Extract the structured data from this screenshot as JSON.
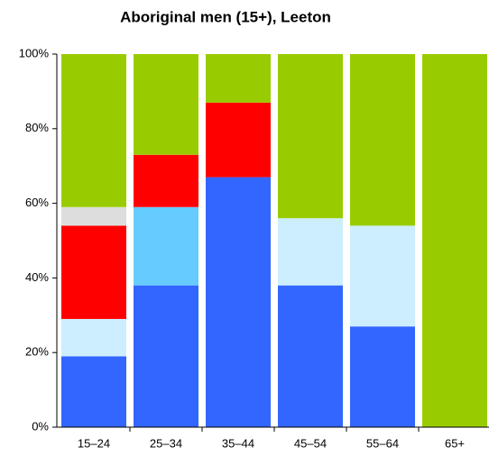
{
  "chart_data": {
    "type": "stacked_bar",
    "title": "Aboriginal men (15+), Leeton",
    "categories": [
      "15–24",
      "25–34",
      "35–44",
      "45–54",
      "55–64",
      "65+"
    ],
    "series": [
      {
        "color": "#3366ff",
        "values": [
          19,
          38,
          67,
          38,
          27,
          0
        ]
      },
      {
        "color": "#cceeff",
        "values": [
          10,
          0,
          0,
          18,
          27,
          0
        ]
      },
      {
        "color": "#66ccff",
        "values": [
          0,
          21,
          0,
          0,
          0,
          0
        ]
      },
      {
        "color": "#ff0000",
        "values": [
          25,
          14,
          20,
          0,
          0,
          0
        ]
      },
      {
        "color": "#dddddd",
        "values": [
          5,
          0,
          0,
          0,
          0,
          0
        ]
      },
      {
        "color": "#99cc00",
        "values": [
          41,
          27,
          13,
          44,
          46,
          100
        ]
      }
    ],
    "ylim": [
      0,
      100
    ],
    "yticks": [
      {
        "value": 0,
        "label": "0%"
      },
      {
        "value": 20,
        "label": "20%"
      },
      {
        "value": 40,
        "label": "40%"
      },
      {
        "value": 60,
        "label": "60%"
      },
      {
        "value": 80,
        "label": "80%"
      },
      {
        "value": 100,
        "label": "100%"
      }
    ]
  }
}
